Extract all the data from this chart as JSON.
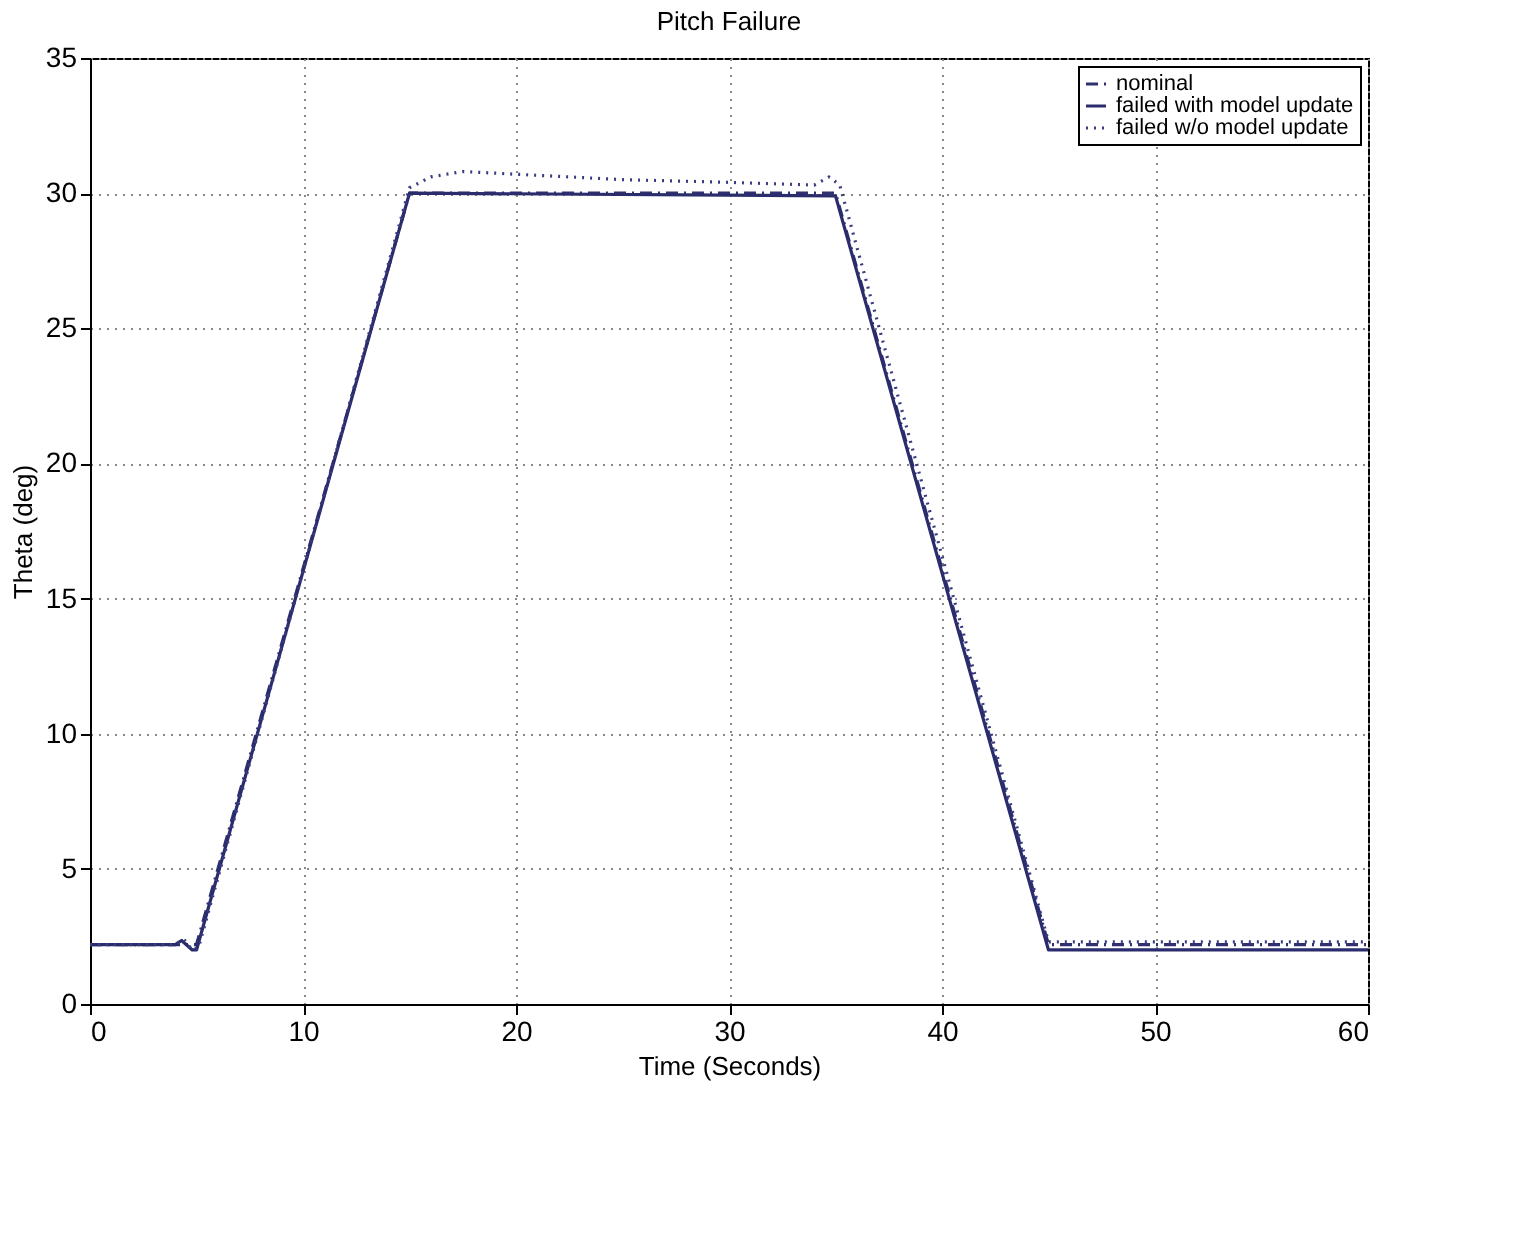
{
  "chart_data": {
    "type": "line",
    "title": "Pitch Failure",
    "xlabel": "Time (Seconds)",
    "ylabel": "Theta (deg)",
    "xlim": [
      0,
      60
    ],
    "xticks": [
      0,
      10,
      20,
      30,
      40,
      50,
      60
    ],
    "ylim": [
      0,
      35
    ],
    "yticks": [
      0,
      5,
      10,
      15,
      20,
      25,
      30,
      35
    ],
    "grid": true,
    "legend": "top right",
    "marker": "none",
    "series": [
      {
        "name": "nominal",
        "color": "#2e3070",
        "line_style": "dashdot",
        "x": [
          0,
          4,
          5,
          15,
          35,
          45,
          60
        ],
        "values": [
          2.2,
          2.2,
          2.2,
          30.0,
          30.0,
          2.2,
          2.2
        ]
      },
      {
        "name": "failed with model update",
        "color": "#2a2c6c",
        "line_style": "solid",
        "x": [
          0,
          4,
          4.3,
          4.8,
          5,
          15,
          35,
          45,
          60
        ],
        "values": [
          2.2,
          2.2,
          2.35,
          2.0,
          2.0,
          30.0,
          29.9,
          2.0,
          2.0
        ]
      },
      {
        "name": "failed w/o model update",
        "color": "#3a3c80",
        "line_style": "dotted",
        "x": [
          0,
          4,
          4.4,
          4.8,
          5.1,
          15,
          16,
          17.5,
          20,
          25,
          30,
          34,
          34.7,
          35.2,
          45,
          50,
          60
        ],
        "values": [
          2.2,
          2.2,
          2.4,
          2.0,
          2.1,
          30.2,
          30.6,
          30.8,
          30.7,
          30.5,
          30.4,
          30.3,
          30.6,
          30.3,
          2.3,
          2.3,
          2.3
        ]
      }
    ]
  }
}
